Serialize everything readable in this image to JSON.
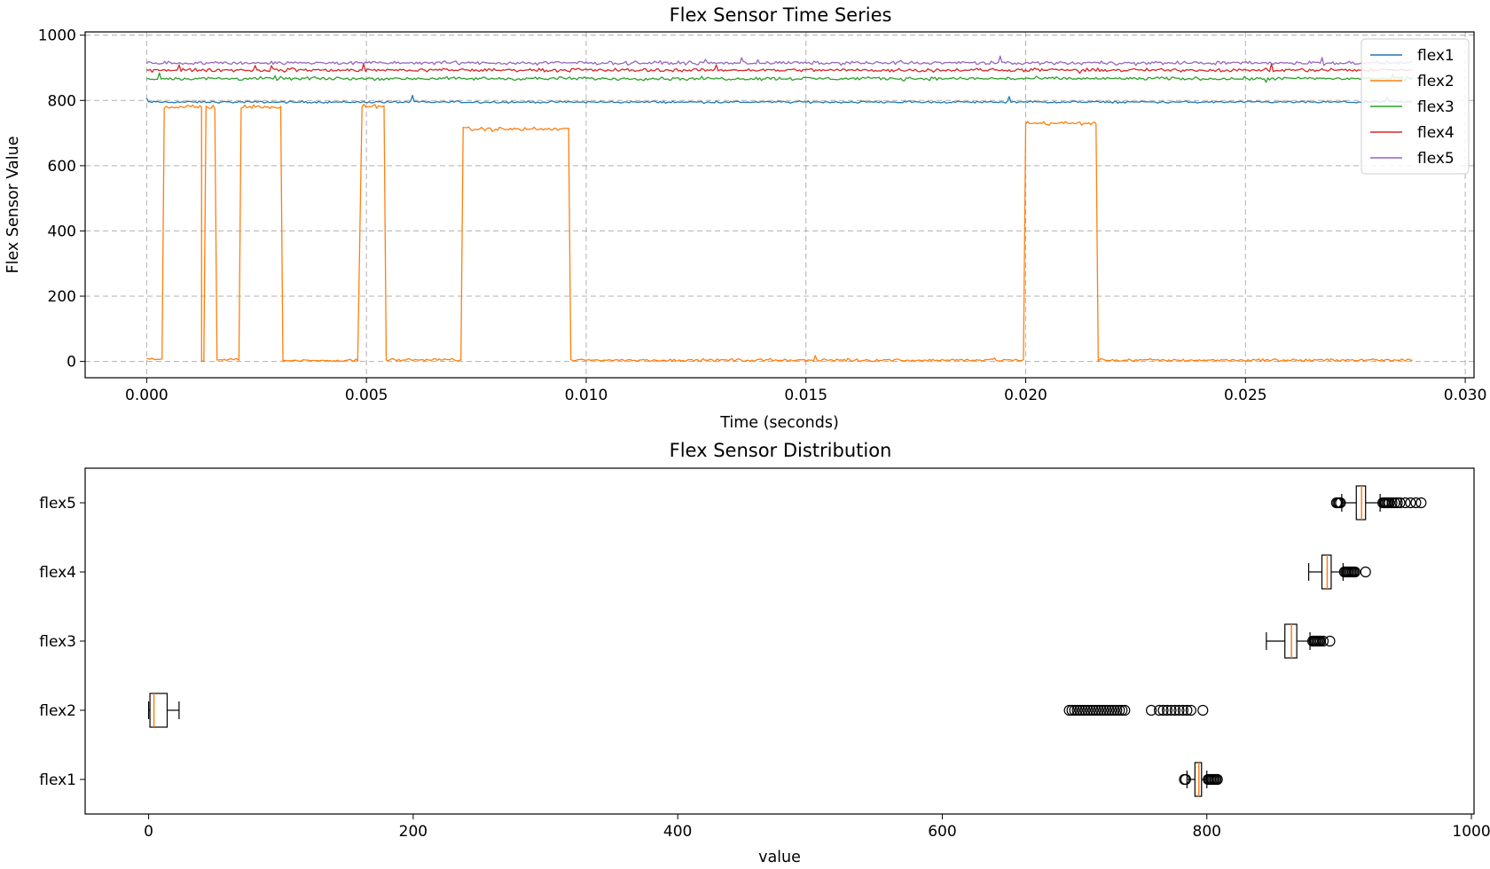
{
  "chart_data": [
    {
      "type": "line",
      "title": "Flex Sensor Time Series",
      "xlabel": "Time (seconds)",
      "ylabel": "Flex Sensor Value",
      "xlim": [
        -0.0014,
        0.0302
      ],
      "ylim": [
        -50,
        1010
      ],
      "x_ticks": [
        "0.000",
        "0.005",
        "0.010",
        "0.015",
        "0.020",
        "0.025",
        "0.030"
      ],
      "y_ticks": [
        "0",
        "200",
        "400",
        "600",
        "800",
        "1000"
      ],
      "x_range": [
        0.0,
        0.0288
      ],
      "grid": true,
      "legend": {
        "position": "top-right",
        "entries": [
          "flex1",
          "flex2",
          "flex3",
          "flex4",
          "flex5"
        ]
      },
      "series": [
        {
          "name": "flex1",
          "color": "#1f77b4",
          "baseline": 795,
          "noise": 3
        },
        {
          "name": "flex2",
          "color": "#ff7f0e",
          "segments": [
            [
              0.0,
              0.00035,
              8
            ],
            [
              0.0004,
              0.00125,
              780
            ],
            [
              0.00125,
              0.0013,
              0
            ],
            [
              0.00135,
              0.00155,
              780
            ],
            [
              0.0016,
              0.0021,
              5
            ],
            [
              0.00215,
              0.00305,
              780
            ],
            [
              0.0031,
              0.0048,
              3
            ],
            [
              0.0049,
              0.0054,
              782
            ],
            [
              0.00545,
              0.00715,
              5
            ],
            [
              0.0072,
              0.0096,
              712
            ],
            [
              0.00965,
              0.01995,
              4
            ],
            [
              0.02,
              0.0216,
              730
            ],
            [
              0.02165,
              0.0288,
              4
            ]
          ]
        },
        {
          "name": "flex3",
          "color": "#2ca02c",
          "baseline": 867,
          "noise": 5
        },
        {
          "name": "flex4",
          "color": "#d62728",
          "baseline": 893,
          "noise": 5
        },
        {
          "name": "flex5",
          "color": "#9467bd",
          "baseline": 915,
          "noise": 5
        }
      ]
    },
    {
      "type": "box",
      "title": "Flex Sensor Distribution",
      "xlabel": "value",
      "xlim": [
        -48,
        1002
      ],
      "x_ticks": [
        "0",
        "200",
        "400",
        "600",
        "800",
        "1000"
      ],
      "categories": [
        "flex1",
        "flex2",
        "flex3",
        "flex4",
        "flex5"
      ],
      "boxes": [
        {
          "name": "flex1",
          "whisker_low": 785,
          "q1": 791,
          "median": 794,
          "q3": 796,
          "whisker_high": 800,
          "outliers": [
            783,
            784,
            801,
            802,
            803,
            804,
            805,
            806,
            807,
            808
          ]
        },
        {
          "name": "flex2",
          "whisker_low": 0,
          "q1": 1,
          "median": 4,
          "q3": 14,
          "whisker_high": 23,
          "outliers": [
            696,
            698,
            700,
            702,
            704,
            706,
            708,
            710,
            712,
            714,
            716,
            718,
            720,
            722,
            724,
            726,
            728,
            730,
            732,
            734,
            736,
            738,
            758,
            764,
            767,
            770,
            773,
            776,
            779,
            782,
            785,
            788,
            797
          ]
        },
        {
          "name": "flex3",
          "whisker_low": 845,
          "q1": 859,
          "median": 864,
          "q3": 868,
          "whisker_high": 878,
          "outliers": [
            880,
            881,
            882,
            883,
            884,
            885,
            886,
            888,
            893
          ]
        },
        {
          "name": "flex4",
          "whisker_low": 877,
          "q1": 887,
          "median": 891,
          "q3": 894,
          "whisker_high": 903,
          "outliers": [
            904,
            905,
            906,
            907,
            908,
            909,
            910,
            911,
            912,
            920
          ]
        },
        {
          "name": "flex5",
          "whisker_low": 902,
          "q1": 913,
          "median": 917,
          "q3": 920,
          "whisker_high": 931,
          "outliers": [
            898,
            899,
            900,
            901,
            933,
            934,
            935,
            936,
            937,
            938,
            940,
            942,
            944,
            946,
            950,
            954,
            958,
            962
          ]
        }
      ]
    }
  ]
}
